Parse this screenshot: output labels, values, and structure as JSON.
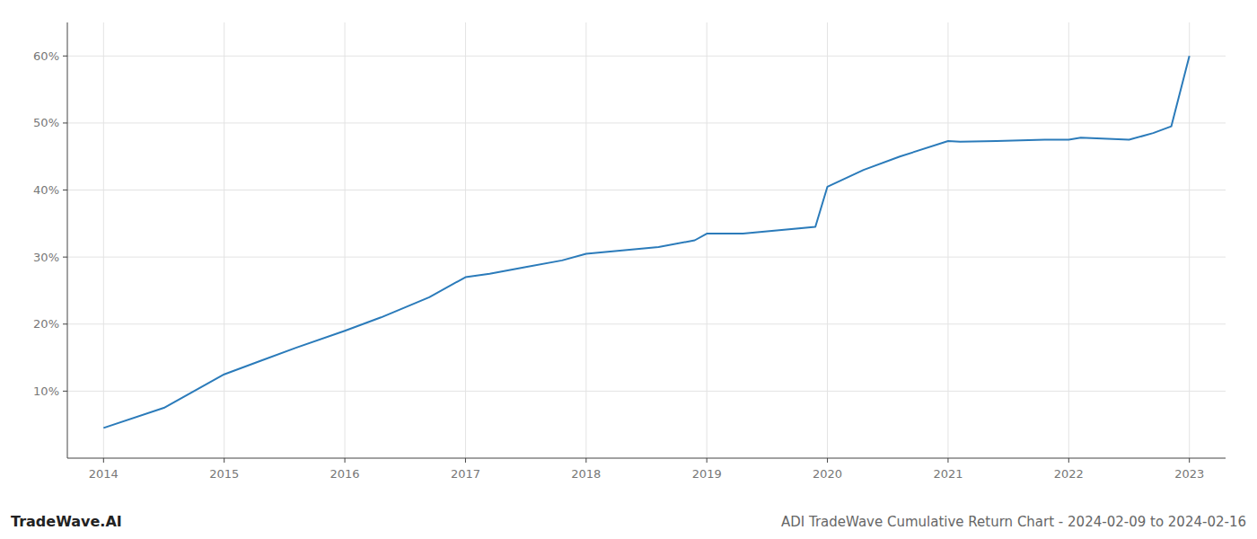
{
  "chart_data": {
    "type": "line",
    "title": "ADI TradeWave Cumulative Return Chart - 2024-02-09 to 2024-02-16",
    "annotations": [
      "TradeWave.AI"
    ],
    "color": "#2b7bba",
    "x": [
      2014,
      2014.5,
      2015,
      2015.3,
      2015.6,
      2016,
      2016.3,
      2016.7,
      2017,
      2017.2,
      2017.5,
      2017.8,
      2018,
      2018.3,
      2018.6,
      2018.9,
      2019,
      2019.3,
      2019.6,
      2019.9,
      2020,
      2020.3,
      2020.6,
      2021,
      2021.1,
      2021.4,
      2021.8,
      2022,
      2022.1,
      2022.5,
      2022.7,
      2022.85,
      2023
    ],
    "values": [
      4.5,
      7.5,
      12.5,
      14.5,
      16.5,
      19.0,
      21.0,
      24.0,
      27.0,
      27.5,
      28.5,
      29.5,
      30.5,
      31.0,
      31.5,
      32.5,
      33.5,
      33.5,
      34.0,
      34.5,
      40.5,
      43.0,
      45.0,
      47.3,
      47.2,
      47.3,
      47.5,
      47.5,
      47.8,
      47.5,
      48.5,
      49.5,
      60.0
    ],
    "xlim": [
      2013.7,
      2023.3
    ],
    "ylim": [
      0,
      65
    ],
    "xticks": [
      2014,
      2015,
      2016,
      2017,
      2018,
      2019,
      2020,
      2021,
      2022,
      2023
    ],
    "yticks": [
      {
        "value": 10,
        "label": "10%"
      },
      {
        "value": 20,
        "label": "20%"
      },
      {
        "value": 30,
        "label": "30%"
      },
      {
        "value": 40,
        "label": "40%"
      },
      {
        "value": 50,
        "label": "50%"
      },
      {
        "value": 60,
        "label": "60%"
      }
    ],
    "grid": true
  }
}
